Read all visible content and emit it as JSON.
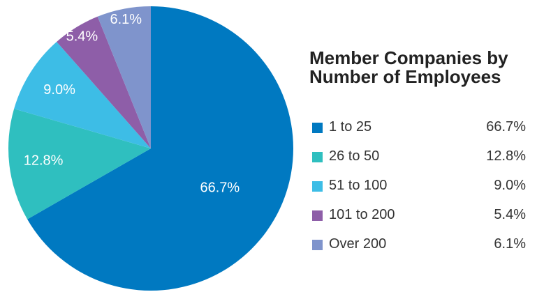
{
  "chart_data": {
    "type": "pie",
    "title": "Member Companies by\nNumber of Employees",
    "categories": [
      "1 to 25",
      "26 to 50",
      "51 to 100",
      "101 to 200",
      "Over 200"
    ],
    "values": [
      66.7,
      12.8,
      9.0,
      5.4,
      6.1
    ],
    "value_labels": [
      "66.7%",
      "12.8%",
      "9.0%",
      "5.4%",
      "6.1%"
    ],
    "colors": [
      "#0079c1",
      "#2fbfbf",
      "#3dbde6",
      "#8e5ea8",
      "#7f94cc"
    ],
    "legend": "right"
  }
}
